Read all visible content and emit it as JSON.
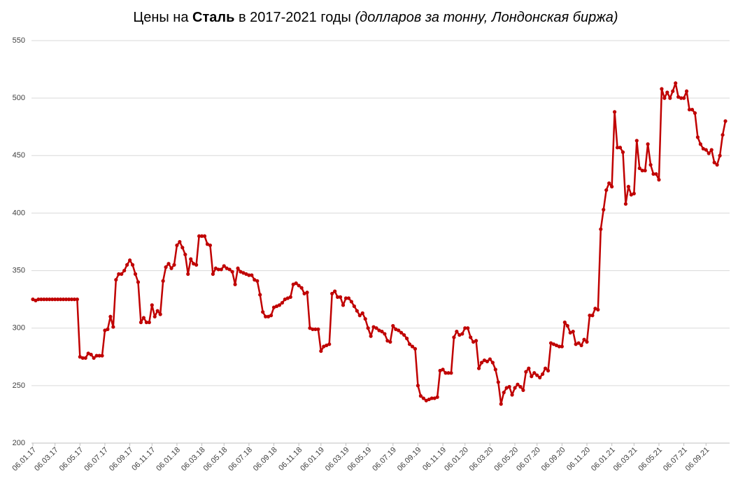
{
  "chart_data": {
    "type": "line",
    "title": {
      "prefix": "Цены на",
      "bold": "Сталь",
      "middle": "в 2017-2021 годы",
      "note": "(долларов за тонну, Лондонская биржа)"
    },
    "categories": [
      "06.01.17",
      null,
      null,
      null,
      null,
      null,
      null,
      null,
      "06.03.17",
      null,
      null,
      null,
      null,
      null,
      null,
      null,
      null,
      "06.05.17",
      null,
      null,
      null,
      null,
      null,
      null,
      null,
      null,
      "06.07.17",
      null,
      null,
      null,
      null,
      null,
      null,
      null,
      null,
      "06.09.17",
      null,
      null,
      null,
      null,
      null,
      null,
      null,
      "06.11.17",
      null,
      null,
      null,
      null,
      null,
      null,
      null,
      null,
      "06.01.18",
      null,
      null,
      null,
      null,
      null,
      null,
      null,
      null,
      "06.03.18",
      null,
      null,
      null,
      null,
      null,
      null,
      null,
      "06.05.18",
      null,
      null,
      null,
      null,
      null,
      null,
      null,
      null,
      "06.07.18",
      null,
      null,
      null,
      null,
      null,
      null,
      null,
      null,
      "06.09.18",
      null,
      null,
      null,
      null,
      null,
      null,
      null,
      null,
      "06.11.18",
      null,
      null,
      null,
      null,
      null,
      null,
      null,
      "06.01.19",
      null,
      null,
      null,
      null,
      null,
      null,
      null,
      null,
      "06.03.19",
      null,
      null,
      null,
      null,
      null,
      null,
      null,
      "06.05.19",
      null,
      null,
      null,
      null,
      null,
      null,
      null,
      null,
      "06.07.19",
      null,
      null,
      null,
      null,
      null,
      null,
      null,
      null,
      "06.09.19",
      null,
      null,
      null,
      null,
      null,
      null,
      null,
      null,
      "06.11.19",
      null,
      null,
      null,
      null,
      null,
      null,
      null,
      "06.01.20",
      null,
      null,
      null,
      null,
      null,
      null,
      null,
      null,
      "06.03.20",
      null,
      null,
      null,
      null,
      null,
      null,
      null,
      null,
      "06.05.20",
      null,
      null,
      null,
      null,
      null,
      null,
      null,
      "06.07.20",
      null,
      null,
      null,
      null,
      null,
      null,
      null,
      null,
      "06.09.20",
      null,
      null,
      null,
      null,
      null,
      null,
      null,
      null,
      "06.11.20",
      null,
      null,
      null,
      null,
      null,
      null,
      null,
      null,
      "06.01.21",
      null,
      null,
      null,
      null,
      null,
      null,
      null,
      "06.03.21",
      null,
      null,
      null,
      null,
      null,
      null,
      null,
      null,
      "06.05.21",
      null,
      null,
      null,
      null,
      null,
      null,
      null,
      null,
      "06.07.21",
      null,
      null,
      null,
      null,
      null,
      null,
      null,
      "06.09.21",
      null,
      null,
      null,
      null,
      null,
      null,
      null
    ],
    "values": [
      325,
      324,
      325,
      325,
      325,
      325,
      325,
      325,
      325,
      325,
      325,
      325,
      325,
      325,
      325,
      325,
      325,
      275,
      274,
      274,
      278,
      277,
      274,
      276,
      276,
      276,
      298,
      299,
      310,
      301,
      342,
      347,
      347,
      350,
      355,
      359,
      355,
      347,
      340,
      305,
      309,
      305,
      305,
      320,
      310,
      315,
      312,
      341,
      353,
      356,
      352,
      355,
      372,
      375,
      370,
      364,
      347,
      360,
      356,
      355,
      380,
      380,
      380,
      373,
      372,
      347,
      352,
      351,
      351,
      354,
      352,
      351,
      349,
      338,
      352,
      349,
      348,
      347,
      346,
      346,
      342,
      341,
      329,
      314,
      310,
      310,
      311,
      318,
      319,
      320,
      322,
      325,
      326,
      327,
      338,
      339,
      337,
      335,
      330,
      331,
      300,
      299,
      299,
      299,
      280,
      284,
      285,
      286,
      330,
      332,
      327,
      327,
      320,
      326,
      326,
      323,
      319,
      315,
      311,
      313,
      308,
      300,
      293,
      301,
      300,
      298,
      297,
      295,
      289,
      288,
      302,
      299,
      298,
      296,
      294,
      291,
      286,
      284,
      282,
      250,
      241,
      239,
      237,
      238,
      239,
      239,
      240,
      263,
      264,
      261,
      261,
      261,
      292,
      297,
      294,
      295,
      300,
      300,
      292,
      288,
      289,
      265,
      270,
      272,
      271,
      273,
      270,
      264,
      253,
      234,
      244,
      248,
      249,
      242,
      248,
      251,
      249,
      246,
      262,
      265,
      258,
      261,
      259,
      257,
      260,
      265,
      263,
      287,
      286,
      285,
      284,
      284,
      305,
      302,
      296,
      297,
      286,
      287,
      285,
      290,
      288,
      311,
      311,
      317,
      316,
      386,
      403,
      420,
      426,
      423,
      488,
      457,
      457,
      453,
      408,
      423,
      416,
      417,
      463,
      439,
      437,
      437,
      460,
      442,
      434,
      434,
      429,
      508,
      500,
      505,
      500,
      506,
      513,
      501,
      500,
      500,
      506,
      490,
      490,
      487,
      466,
      460,
      456,
      455,
      452,
      455,
      444,
      442,
      450,
      468,
      480
    ],
    "color": "#c00000",
    "ylim": [
      200,
      550
    ],
    "yticks": [
      200,
      250,
      300,
      350,
      400,
      450,
      500,
      550
    ],
    "grid": true
  }
}
